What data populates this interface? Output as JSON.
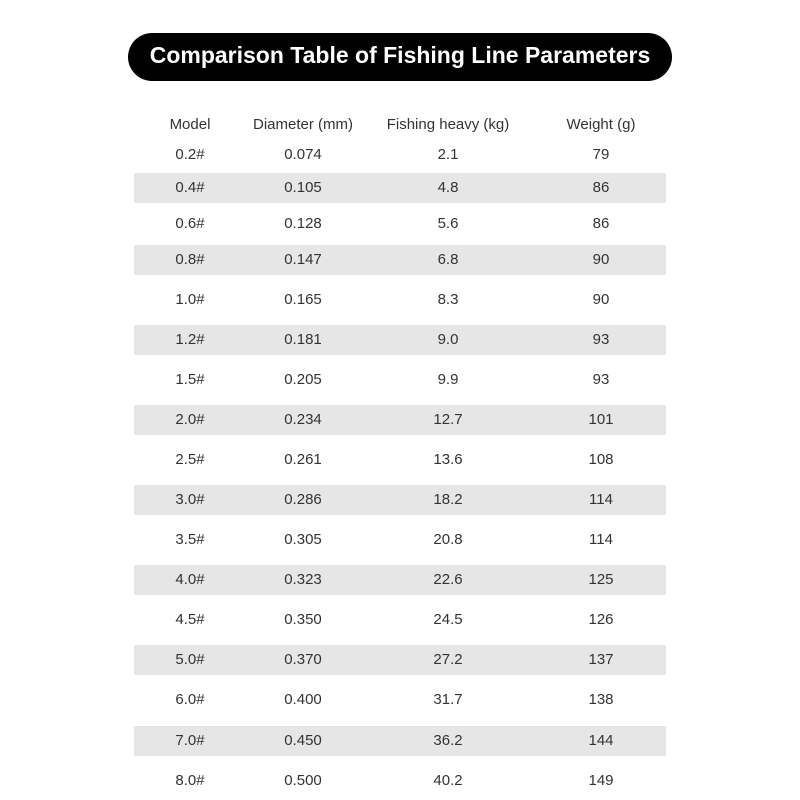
{
  "header": {
    "title": "Comparison Table of Fishing Line Parameters"
  },
  "table": {
    "columns": [
      "Model",
      "Diameter (mm)",
      "Fishing heavy (kg)",
      "Weight (g)"
    ],
    "rows": [
      [
        "0.2#",
        "0.074",
        "2.1",
        "79"
      ],
      [
        "0.4#",
        "0.105",
        "4.8",
        "86"
      ],
      [
        "0.6#",
        "0.128",
        "5.6",
        "86"
      ],
      [
        "0.8#",
        "0.147",
        "6.8",
        "90"
      ],
      [
        "1.0#",
        "0.165",
        "8.3",
        "90"
      ],
      [
        "1.2#",
        "0.181",
        "9.0",
        "93"
      ],
      [
        "1.5#",
        "0.205",
        "9.9",
        "93"
      ],
      [
        "2.0#",
        "0.234",
        "12.7",
        "101"
      ],
      [
        "2.5#",
        "0.261",
        "13.6",
        "108"
      ],
      [
        "3.0#",
        "0.286",
        "18.2",
        "114"
      ],
      [
        "3.5#",
        "0.305",
        "20.8",
        "114"
      ],
      [
        "4.0#",
        "0.323",
        "22.6",
        "125"
      ],
      [
        "4.5#",
        "0.350",
        "24.5",
        "126"
      ],
      [
        "5.0#",
        "0.370",
        "27.2",
        "137"
      ],
      [
        "6.0#",
        "0.400",
        "31.7",
        "138"
      ],
      [
        "7.0#",
        "0.450",
        "36.2",
        "144"
      ],
      [
        "8.0#",
        "0.500",
        "40.2",
        "149"
      ]
    ]
  }
}
